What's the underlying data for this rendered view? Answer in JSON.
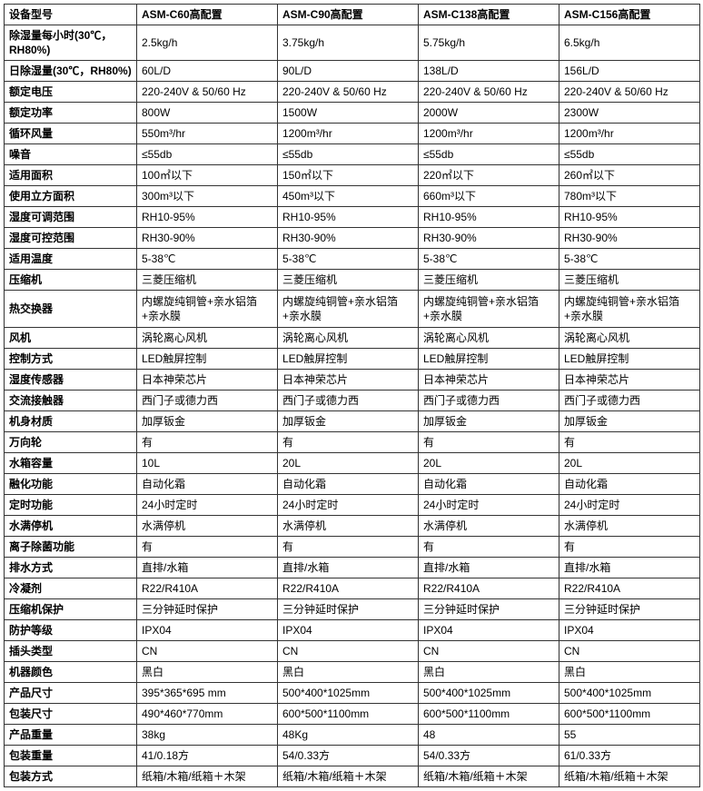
{
  "columns": [
    "设备型号",
    "ASM-C60高配置",
    "ASM-C90高配置",
    "ASM-C138高配置",
    "ASM-C156高配置"
  ],
  "rows": [
    [
      "除湿量每小时(30℃，RH80%)",
      "2.5kg/h",
      "3.75kg/h",
      "5.75kg/h",
      "6.5kg/h"
    ],
    [
      "日除湿量(30℃，RH80%)",
      "60L/D",
      "90L/D",
      "138L/D",
      "156L/D"
    ],
    [
      "额定电压",
      "220-240V & 50/60 Hz",
      "220-240V & 50/60 Hz",
      "220-240V & 50/60 Hz",
      "220-240V & 50/60 Hz"
    ],
    [
      "额定功率",
      "800W",
      "1500W",
      "2000W",
      "2300W"
    ],
    [
      "循环风量",
      "550m³/hr",
      "1200m³/hr",
      "1200m³/hr",
      "1200m³/hr"
    ],
    [
      "噪音",
      "≤55db",
      "≤55db",
      "≤55db",
      "≤55db"
    ],
    [
      "适用面积",
      "100㎡以下",
      "150㎡以下",
      "220㎡以下",
      "260㎡以下"
    ],
    [
      "使用立方面积",
      "300m³以下",
      "450m³以下",
      "660m³以下",
      "780m³以下"
    ],
    [
      "湿度可调范围",
      "RH10-95%",
      "RH10-95%",
      "RH10-95%",
      "RH10-95%"
    ],
    [
      "湿度可控范围",
      "RH30-90%",
      "RH30-90%",
      "RH30-90%",
      "RH30-90%"
    ],
    [
      "适用温度",
      "5-38℃",
      "5-38℃",
      "5-38℃",
      "5-38℃"
    ],
    [
      "压缩机",
      "三菱压缩机",
      "三菱压缩机",
      "三菱压缩机",
      "三菱压缩机"
    ],
    [
      "热交换器",
      "内螺旋纯铜管+亲水铝箔+亲水膜",
      "内螺旋纯铜管+亲水铝箔+亲水膜",
      "内螺旋纯铜管+亲水铝箔+亲水膜",
      "内螺旋纯铜管+亲水铝箔+亲水膜"
    ],
    [
      "风机",
      "涡轮离心风机",
      "涡轮离心风机",
      "涡轮离心风机",
      "涡轮离心风机"
    ],
    [
      "控制方式",
      "LED触屏控制",
      "LED触屏控制",
      "LED触屏控制",
      "LED触屏控制"
    ],
    [
      "湿度传感器",
      "日本神荣芯片",
      "日本神荣芯片",
      "日本神荣芯片",
      "日本神荣芯片"
    ],
    [
      "交流接触器",
      "西门子或德力西",
      "西门子或德力西",
      "西门子或德力西",
      "西门子或德力西"
    ],
    [
      "机身材质",
      "加厚钣金",
      "加厚钣金",
      "加厚钣金",
      "加厚钣金"
    ],
    [
      "万向轮",
      "有",
      "有",
      "有",
      "有"
    ],
    [
      "水箱容量",
      "10L",
      "20L",
      "20L",
      "20L"
    ],
    [
      "融化功能",
      "自动化霜",
      "自动化霜",
      "自动化霜",
      "自动化霜"
    ],
    [
      "定时功能",
      "24小时定时",
      "24小时定时",
      "24小时定时",
      "24小时定时"
    ],
    [
      "水满停机",
      "水满停机",
      "水满停机",
      "水满停机",
      "水满停机"
    ],
    [
      "离子除菌功能",
      "有",
      "有",
      "有",
      "有"
    ],
    [
      "排水方式",
      "直排/水箱",
      "直排/水箱",
      "直排/水箱",
      "直排/水箱"
    ],
    [
      "冷凝剂",
      "R22/R410A",
      "R22/R410A",
      "R22/R410A",
      "R22/R410A"
    ],
    [
      "压缩机保护",
      "三分钟延时保护",
      "三分钟延时保护",
      "三分钟延时保护",
      "三分钟延时保护"
    ],
    [
      "防护等级",
      "IPX04",
      "IPX04",
      "IPX04",
      "IPX04"
    ],
    [
      "插头类型",
      "CN",
      "CN",
      "CN",
      "CN"
    ],
    [
      "机器颜色",
      "黑白",
      "黑白",
      "黑白",
      "黑白"
    ],
    [
      "产品尺寸",
      "395*365*695 mm",
      "500*400*1025mm",
      "500*400*1025mm",
      "500*400*1025mm"
    ],
    [
      "包装尺寸",
      "490*460*770mm",
      "600*500*1100mm",
      "600*500*1100mm",
      "600*500*1100mm"
    ],
    [
      "产品重量",
      "38kg",
      "48Kg",
      "48",
      "55"
    ],
    [
      "包装重量",
      "41/0.18方",
      "54/0.33方",
      "54/0.33方",
      "61/0.33方"
    ],
    [
      "包装方式",
      "纸箱/木箱/纸箱＋木架",
      "纸箱/木箱/纸箱＋木架",
      "纸箱/木箱/纸箱＋木架",
      "纸箱/木箱/纸箱＋木架"
    ]
  ],
  "tall_rows": [
    12
  ]
}
